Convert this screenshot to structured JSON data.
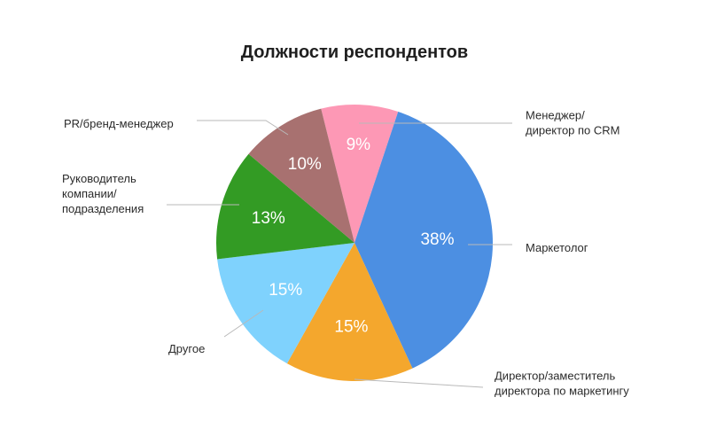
{
  "chart_data": {
    "type": "pie",
    "title": "Должности респондентов",
    "slices": [
      {
        "name": "Менеджер/ директор по CRM",
        "lines": [
          "Менеджер/",
          "директор по CRM"
        ],
        "value": 9,
        "label": "9%",
        "color": "#fd98b5"
      },
      {
        "name": "Маркетолог",
        "lines": [
          "Маркетолог"
        ],
        "value": 38,
        "label": "38%",
        "color": "#4c8fe2"
      },
      {
        "name": "Директор/заместитель директора по маркетингу",
        "lines": [
          "Директор/заместитель",
          "директора по маркетингу"
        ],
        "value": 15,
        "label": "15%",
        "color": "#f4a72d"
      },
      {
        "name": "Другое",
        "lines": [
          "Другое"
        ],
        "value": 15,
        "label": "15%",
        "color": "#7fd2fd"
      },
      {
        "name": "Руководитель компании/ подразделения",
        "lines": [
          "Руководитель",
          "компании/",
          "подразделения"
        ],
        "value": 13,
        "label": "13%",
        "color": "#339b24"
      },
      {
        "name": "PR/бренд-менеджер",
        "lines": [
          "PR/бренд-менеджер"
        ],
        "value": 10,
        "label": "10%",
        "color": "#a87170"
      }
    ]
  }
}
